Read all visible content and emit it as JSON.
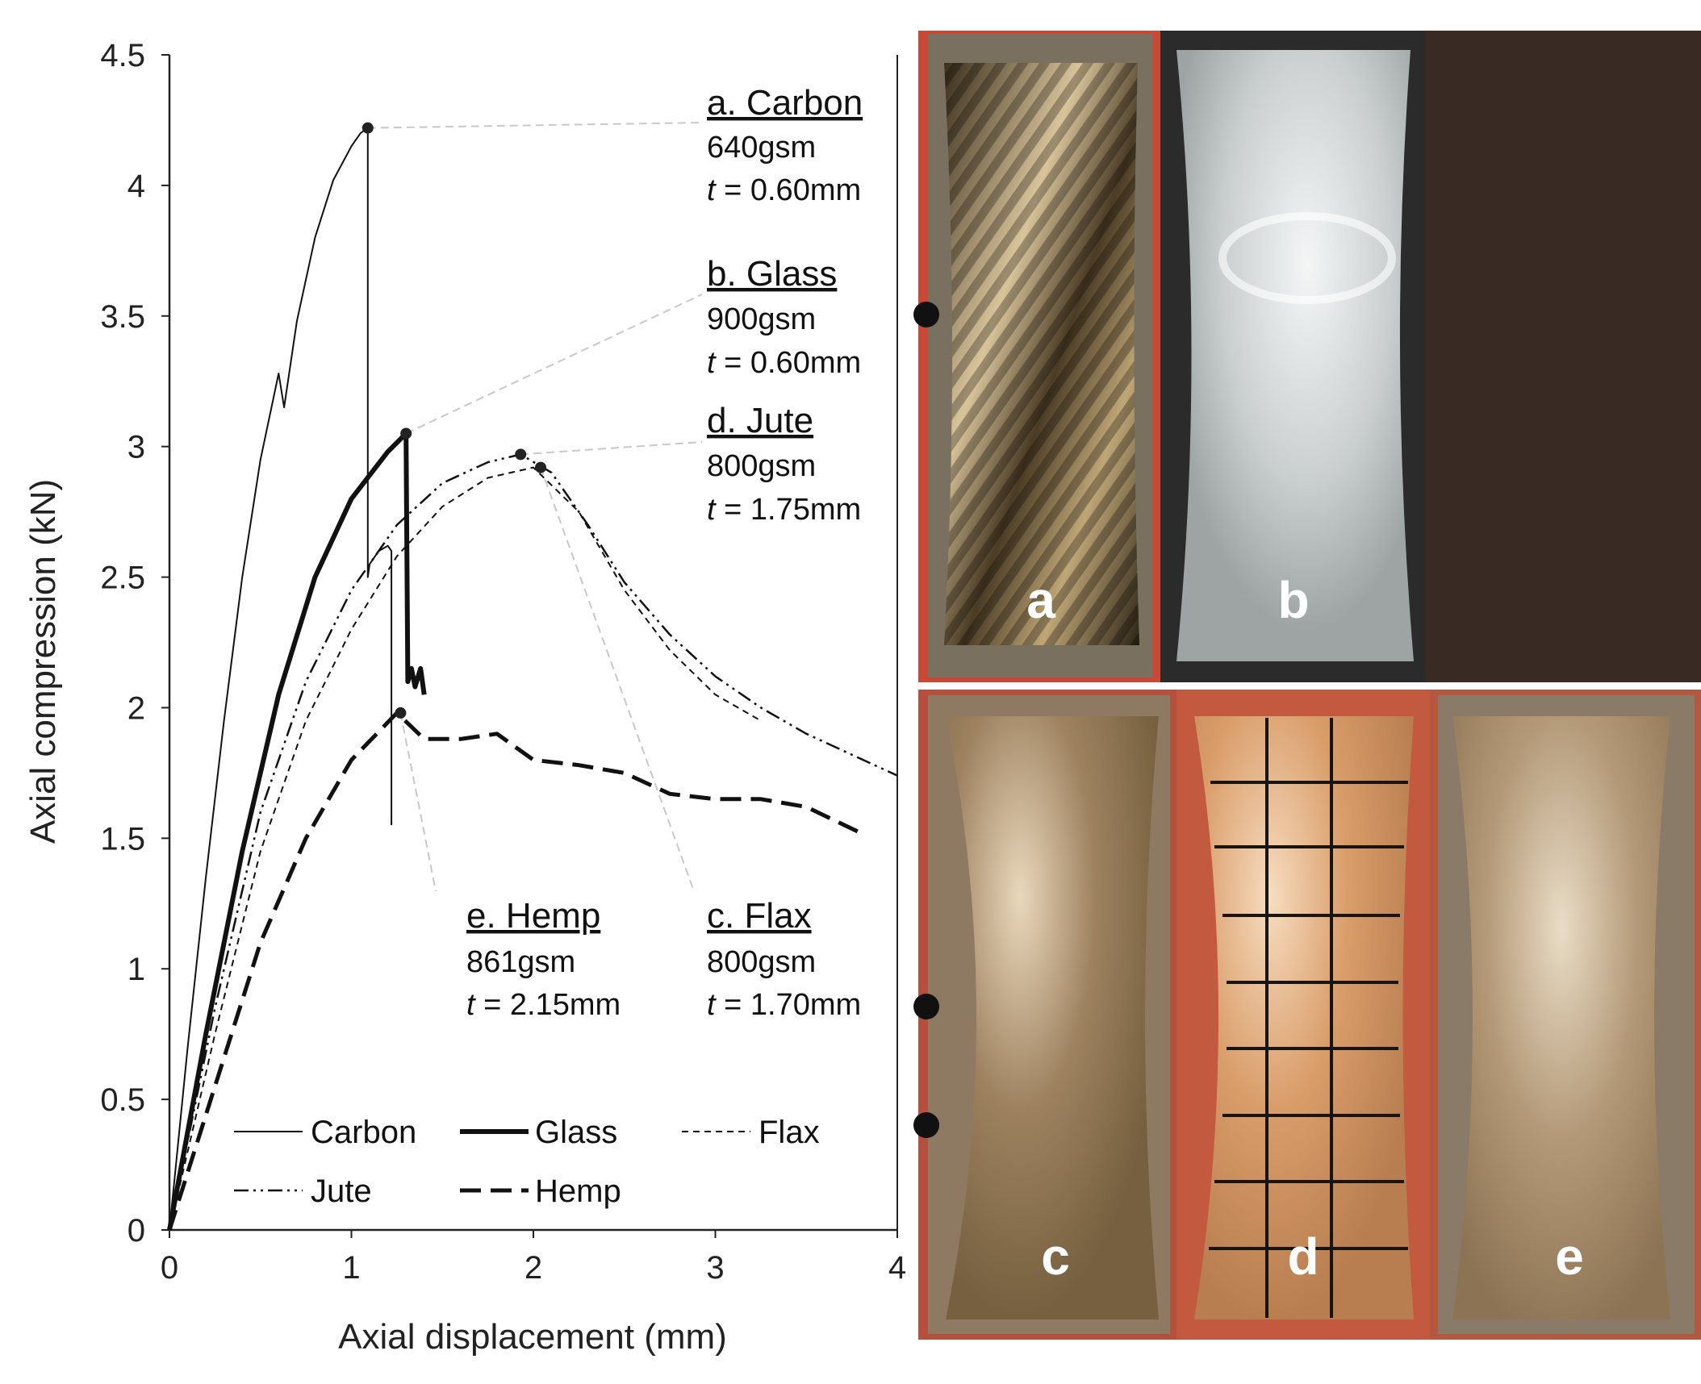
{
  "chart_data": {
    "type": "line",
    "title": "",
    "xlabel": "Axial displacement (mm)",
    "ylabel": "Axial compression (kN)",
    "xlim": [
      0,
      4
    ],
    "ylim": [
      0,
      4.5
    ],
    "xticks": [
      "0",
      "1",
      "2",
      "3",
      "4"
    ],
    "yticks": [
      "0",
      "0.5",
      "1",
      "1.5",
      "2",
      "2.5",
      "3",
      "3.5",
      "4",
      "4.5"
    ],
    "grid": false,
    "legend_position": "bottom-left-inside",
    "series": [
      {
        "name": "Carbon",
        "style": "thin-solid",
        "x": [
          0,
          0.1,
          0.2,
          0.3,
          0.4,
          0.5,
          0.6,
          0.63,
          0.7,
          0.8,
          0.9,
          1.0,
          1.05,
          1.09,
          1.09,
          1.1,
          1.15,
          1.2,
          1.22,
          1.22
        ],
        "y": [
          0,
          0.7,
          1.35,
          1.95,
          2.5,
          2.95,
          3.28,
          3.15,
          3.48,
          3.8,
          4.02,
          4.15,
          4.2,
          4.22,
          2.5,
          2.55,
          2.6,
          2.62,
          2.6,
          1.55
        ]
      },
      {
        "name": "Glass",
        "style": "thick-solid",
        "x": [
          0,
          0.2,
          0.4,
          0.6,
          0.8,
          1.0,
          1.2,
          1.3,
          1.31,
          1.33,
          1.35,
          1.38,
          1.4
        ],
        "y": [
          0,
          0.75,
          1.45,
          2.05,
          2.5,
          2.8,
          2.98,
          3.05,
          2.1,
          2.15,
          2.08,
          2.15,
          2.05
        ]
      },
      {
        "name": "Flax",
        "style": "short-dash",
        "x": [
          0,
          0.25,
          0.5,
          0.75,
          1.0,
          1.25,
          1.5,
          1.75,
          2.0,
          2.25,
          2.5,
          2.75,
          3.0,
          3.25
        ],
        "y": [
          0,
          0.75,
          1.45,
          1.95,
          2.3,
          2.58,
          2.77,
          2.88,
          2.92,
          2.75,
          2.45,
          2.22,
          2.05,
          1.95
        ]
      },
      {
        "name": "Jute",
        "style": "dash-dot-dot",
        "x": [
          0,
          0.25,
          0.5,
          0.75,
          1.0,
          1.25,
          1.5,
          1.75,
          1.93,
          2.1,
          2.3,
          2.5,
          2.75,
          3.0,
          3.25,
          3.5,
          3.75,
          4.0
        ],
        "y": [
          0,
          0.85,
          1.6,
          2.1,
          2.45,
          2.7,
          2.86,
          2.94,
          2.97,
          2.9,
          2.7,
          2.48,
          2.28,
          2.12,
          2.0,
          1.9,
          1.82,
          1.74
        ]
      },
      {
        "name": "Hemp",
        "style": "long-dash-thick",
        "x": [
          0,
          0.25,
          0.5,
          0.75,
          1.0,
          1.25,
          1.4,
          1.6,
          1.8,
          2.0,
          2.25,
          2.5,
          2.75,
          3.0,
          3.25,
          3.5,
          3.8
        ],
        "y": [
          0,
          0.55,
          1.1,
          1.5,
          1.8,
          1.98,
          1.88,
          1.88,
          1.9,
          1.8,
          1.78,
          1.75,
          1.67,
          1.65,
          1.65,
          1.62,
          1.52
        ]
      }
    ],
    "peaks": [
      {
        "series": "Carbon",
        "x": 1.09,
        "y": 4.22
      },
      {
        "series": "Glass",
        "x": 1.3,
        "y": 3.05
      },
      {
        "series": "Jute",
        "x": 1.93,
        "y": 2.97
      },
      {
        "series": "Flax",
        "x": 2.04,
        "y": 2.92
      },
      {
        "series": "Hemp",
        "x": 1.27,
        "y": 1.98
      }
    ],
    "annotations": [
      {
        "id": "carbon",
        "title": "a. Carbon",
        "gsm": "640gsm",
        "t_prefix": "t",
        "t_value": " = 0.60mm"
      },
      {
        "id": "glass",
        "title": "b. Glass",
        "gsm": "900gsm",
        "t_prefix": "t",
        "t_value": " = 0.60mm"
      },
      {
        "id": "jute",
        "title": "d. Jute",
        "gsm": "800gsm",
        "t_prefix": "t",
        "t_value": " = 1.75mm"
      },
      {
        "id": "hemp",
        "title": "e. Hemp",
        "gsm": "861gsm",
        "t_prefix": "t",
        "t_value": " = 2.15mm"
      },
      {
        "id": "flax",
        "title": "c. Flax",
        "gsm": "800gsm",
        "t_prefix": "t",
        "t_value": " = 1.70mm"
      }
    ]
  },
  "photos": [
    {
      "letter": "a",
      "material": "carbon",
      "color": "#6e5a3a"
    },
    {
      "letter": "b",
      "material": "glass",
      "color": "#c4c9c9"
    },
    {
      "letter": "c",
      "material": "flax",
      "color": "#9a7c58"
    },
    {
      "letter": "d",
      "material": "jute",
      "color": "#d59a68"
    },
    {
      "letter": "e",
      "material": "hemp",
      "color": "#ad9272"
    }
  ]
}
